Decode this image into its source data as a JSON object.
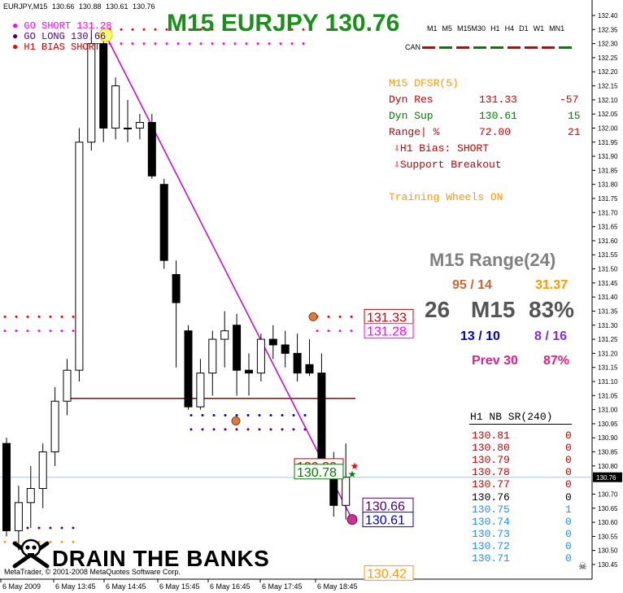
{
  "header": {
    "symbol_info": "EURJPY,M15",
    "ohlc": [
      "130.66",
      "130.88",
      "130.61",
      "130.76"
    ]
  },
  "title": "M15 EURJPY 130.76",
  "timeframes": [
    "M1",
    "M5",
    "M15",
    "M30",
    "H1",
    "H4",
    "D1",
    "W1",
    "MN1"
  ],
  "can_label": "CAN",
  "legend": [
    {
      "label": "GO SHORT",
      "value": "131.28",
      "color": "#ff00ff"
    },
    {
      "label": "GO LONG",
      "value": "130.66",
      "color": "#4b0082"
    },
    {
      "label": "H1 BIAS",
      "value": "SHORT",
      "color": "#ff0000"
    }
  ],
  "dfsr": {
    "title": "M15 DFSR(5)",
    "rows": [
      {
        "label": "Dyn Res",
        "value": "131.33",
        "extra": "-57",
        "color": "#cc0000"
      },
      {
        "label": "Dyn Sup",
        "value": "130.61",
        "extra": "15",
        "color": "#008000"
      },
      {
        "label": "Range| %",
        "value": "72.00",
        "extra": "21",
        "color": "#cc0000"
      }
    ],
    "bias": "⇩H1 Bias: SHORT",
    "breakout": "⇩Support Breakout",
    "training": "Training Wheels ON"
  },
  "range_stats": {
    "title": "M15 Range(24)",
    "row1_left": "95 / 14",
    "row1_right": "31.37",
    "row2_count": "26",
    "row2_tf": "M15",
    "row2_pct": "83%",
    "row3_left": "13 / 10",
    "row3_right": "8 / 16",
    "prev_label": "Prev 30",
    "prev_pct": "87%"
  },
  "sr_table": {
    "title": "H1 NB SR(240)",
    "rows": [
      {
        "price": "130.81",
        "count": "0",
        "color": "#cc0000"
      },
      {
        "price": "130.80",
        "count": "0",
        "color": "#cc0000"
      },
      {
        "price": "130.79",
        "count": "0",
        "color": "#cc0000"
      },
      {
        "price": "130.78",
        "count": "0",
        "color": "#cc0000"
      },
      {
        "price": "130.77",
        "count": "0",
        "color": "#cc0000"
      },
      {
        "price": "130.76",
        "count": "0",
        "color": "#000000"
      },
      {
        "price": "130.75",
        "count": "1",
        "color": "#1e90ff"
      },
      {
        "price": "130.74",
        "count": "0",
        "color": "#1e90ff"
      },
      {
        "price": "130.73",
        "count": "0",
        "color": "#1e90ff"
      },
      {
        "price": "130.72",
        "count": "0",
        "color": "#1e90ff"
      },
      {
        "price": "130.71",
        "count": "0",
        "color": "#1e90ff"
      }
    ]
  },
  "branding": "DRAIN THE BANKS",
  "footer": "MetaTrader, © 2001-2008 MetaQuotes Software Corp.",
  "chart_data": {
    "type": "candlestick",
    "ylim": [
      130.42,
      132.42
    ],
    "y_ticks": [
      "132.40",
      "132.35",
      "132.30",
      "132.25",
      "132.20",
      "132.15",
      "132.10",
      "132.05",
      "132.00",
      "131.95",
      "131.90",
      "131.85",
      "131.80",
      "131.75",
      "131.70",
      "131.65",
      "131.60",
      "131.55",
      "131.50",
      "131.45",
      "131.40",
      "131.35",
      "131.30",
      "131.25",
      "131.20",
      "131.15",
      "131.10",
      "131.05",
      "131.00",
      "130.95",
      "130.90",
      "130.85",
      "130.80",
      "130.76",
      "130.70",
      "130.65",
      "130.60",
      "130.55",
      "130.50",
      "130.45"
    ],
    "x_labels": [
      "6 May 2009",
      "6 May 13:45",
      "6 May 14:45",
      "6 May 15:45",
      "6 May 16:45",
      "6 May 17:45",
      "6 May 18:45"
    ],
    "candles": [
      {
        "o": 130.88,
        "h": 130.9,
        "l": 130.55,
        "c": 130.57
      },
      {
        "o": 130.57,
        "h": 130.73,
        "l": 130.5,
        "c": 130.67
      },
      {
        "o": 130.67,
        "h": 130.8,
        "l": 130.58,
        "c": 130.72
      },
      {
        "o": 130.72,
        "h": 130.88,
        "l": 130.65,
        "c": 130.85
      },
      {
        "o": 130.85,
        "h": 131.08,
        "l": 130.8,
        "c": 131.03
      },
      {
        "o": 131.03,
        "h": 131.18,
        "l": 130.98,
        "c": 131.14
      },
      {
        "o": 131.14,
        "h": 132.0,
        "l": 131.1,
        "c": 131.95
      },
      {
        "o": 131.95,
        "h": 132.35,
        "l": 131.92,
        "c": 132.3
      },
      {
        "o": 132.3,
        "h": 132.33,
        "l": 131.95,
        "c": 132.0
      },
      {
        "o": 132.0,
        "h": 132.18,
        "l": 131.96,
        "c": 132.15
      },
      {
        "o": 132.0,
        "h": 132.1,
        "l": 131.95,
        "c": 132.0
      },
      {
        "o": 132.0,
        "h": 132.05,
        "l": 131.96,
        "c": 132.02
      },
      {
        "o": 132.02,
        "h": 132.05,
        "l": 131.82,
        "c": 131.83
      },
      {
        "o": 131.8,
        "h": 131.82,
        "l": 131.5,
        "c": 131.53
      },
      {
        "o": 131.48,
        "h": 131.53,
        "l": 131.15,
        "c": 131.38
      },
      {
        "o": 131.28,
        "h": 131.3,
        "l": 131.0,
        "c": 131.01
      },
      {
        "o": 131.01,
        "h": 131.18,
        "l": 131.0,
        "c": 131.13
      },
      {
        "o": 131.13,
        "h": 131.28,
        "l": 131.05,
        "c": 131.25
      },
      {
        "o": 131.25,
        "h": 131.35,
        "l": 131.15,
        "c": 131.28
      },
      {
        "o": 131.3,
        "h": 131.34,
        "l": 131.05,
        "c": 131.14
      },
      {
        "o": 131.14,
        "h": 131.2,
        "l": 131.05,
        "c": 131.13
      },
      {
        "o": 131.13,
        "h": 131.27,
        "l": 131.1,
        "c": 131.25
      },
      {
        "o": 131.25,
        "h": 131.3,
        "l": 131.18,
        "c": 131.23
      },
      {
        "o": 131.23,
        "h": 131.28,
        "l": 131.15,
        "c": 131.2
      },
      {
        "o": 131.2,
        "h": 131.27,
        "l": 131.1,
        "c": 131.13
      },
      {
        "o": 131.16,
        "h": 131.25,
        "l": 131.12,
        "c": 131.13
      },
      {
        "o": 131.13,
        "h": 131.2,
        "l": 130.8,
        "c": 130.82
      },
      {
        "o": 130.82,
        "h": 130.85,
        "l": 130.62,
        "c": 130.66
      },
      {
        "o": 130.66,
        "h": 130.88,
        "l": 130.61,
        "c": 130.76
      }
    ],
    "resistance_line": 131.04,
    "current_price": "130.76",
    "price_labels": [
      {
        "value": "131.33",
        "color": "#cc0000"
      },
      {
        "value": "131.28",
        "color": "#ff00ff"
      },
      {
        "value": "130.80",
        "color": "#cc0000"
      },
      {
        "value": "130.78",
        "color": "#008000"
      },
      {
        "value": "130.66",
        "color": "#4b0082"
      },
      {
        "value": "130.61",
        "color": "#0000cc"
      },
      {
        "value": "130.42",
        "color": "#ff9900"
      }
    ]
  }
}
